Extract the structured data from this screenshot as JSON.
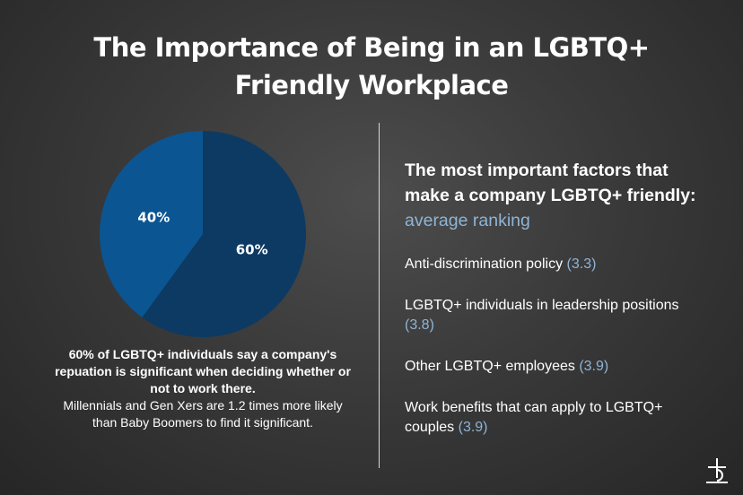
{
  "title_line1": "The Importance of Being in an LGBTQ+",
  "title_line2": "Friendly Workplace",
  "chart_data": {
    "type": "pie",
    "slices": [
      {
        "label": "60%",
        "value": 60,
        "color": "#0c3a63"
      },
      {
        "label": "40%",
        "value": 40,
        "color": "#0b5592"
      }
    ]
  },
  "caption": {
    "bold": "60% of LGBTQ+ individuals say a company's repuation is significant when deciding whether or not to work there.",
    "regular": "Millennials and Gen Xers are 1.2 times more likely than Baby Boomers to find it significant."
  },
  "heading": {
    "text": "The most important factors that make a company LGBTQ+ friendly:",
    "subtitle": "average ranking"
  },
  "factors": [
    {
      "label": "Anti-discrimination policy",
      "rank": "(3.3)"
    },
    {
      "label": "LGBTQ+ individuals in leadership positions",
      "rank": "(3.8)"
    },
    {
      "label": "Other LGBTQ+ employees",
      "rank": "(3.9)"
    },
    {
      "label": "Work benefits that can apply to LGBTQ+ couples",
      "rank": "(3.9)"
    }
  ],
  "colors": {
    "accent": "#8fb4d6",
    "dark_blue": "#0c3a63",
    "mid_blue": "#0b5592"
  },
  "logo_icon": "brand-b-logo-icon"
}
